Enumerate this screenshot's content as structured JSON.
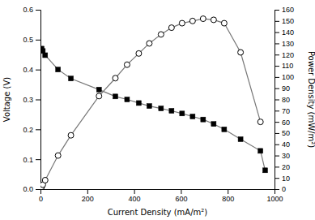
{
  "chart_data": {
    "type": "line",
    "xlabel": "Current Density (mA/m²)",
    "ylabel": "Voltage (V)",
    "y2label": "Power Density (mW/m²)",
    "xlim": [
      0,
      1000
    ],
    "xticks": [
      0,
      200,
      400,
      600,
      800,
      1000
    ],
    "ylim": [
      0,
      0.6
    ],
    "yticks": [
      {
        "value": 0.0,
        "label": "0.0"
      },
      0.1,
      0.2,
      0.3,
      0.4,
      0.5,
      0.6
    ],
    "y2lim": [
      0,
      160
    ],
    "y2ticks": [
      0,
      10,
      20,
      30,
      40,
      50,
      60,
      70,
      80,
      90,
      100,
      110,
      120,
      130,
      140,
      150,
      160
    ],
    "series": [
      {
        "x": [
          5,
          10,
          20,
          75,
          130,
          250,
          320,
          370,
          420,
          465,
          515,
          560,
          605,
          650,
          695,
          740,
          785,
          855,
          940,
          960
        ],
        "values": [
          0.47,
          0.462,
          0.448,
          0.4,
          0.37,
          0.333,
          0.31,
          0.3,
          0.288,
          0.278,
          0.27,
          0.262,
          0.253,
          0.243,
          0.233,
          0.218,
          0.2,
          0.167,
          0.128,
          0.063
        ],
        "color": "#777777",
        "marker": "square"
      },
      {
        "x": [
          5,
          10,
          20,
          75,
          130,
          250,
          320,
          370,
          420,
          465,
          515,
          560,
          605,
          650,
          695,
          740,
          785,
          855,
          940
        ],
        "values": [
          2,
          4,
          8,
          30,
          48,
          83,
          99,
          111,
          121,
          130,
          138,
          144,
          148,
          150,
          152,
          151,
          148,
          122,
          60
        ],
        "color": "#777777",
        "marker": "circle",
        "axis": "y2"
      }
    ]
  }
}
